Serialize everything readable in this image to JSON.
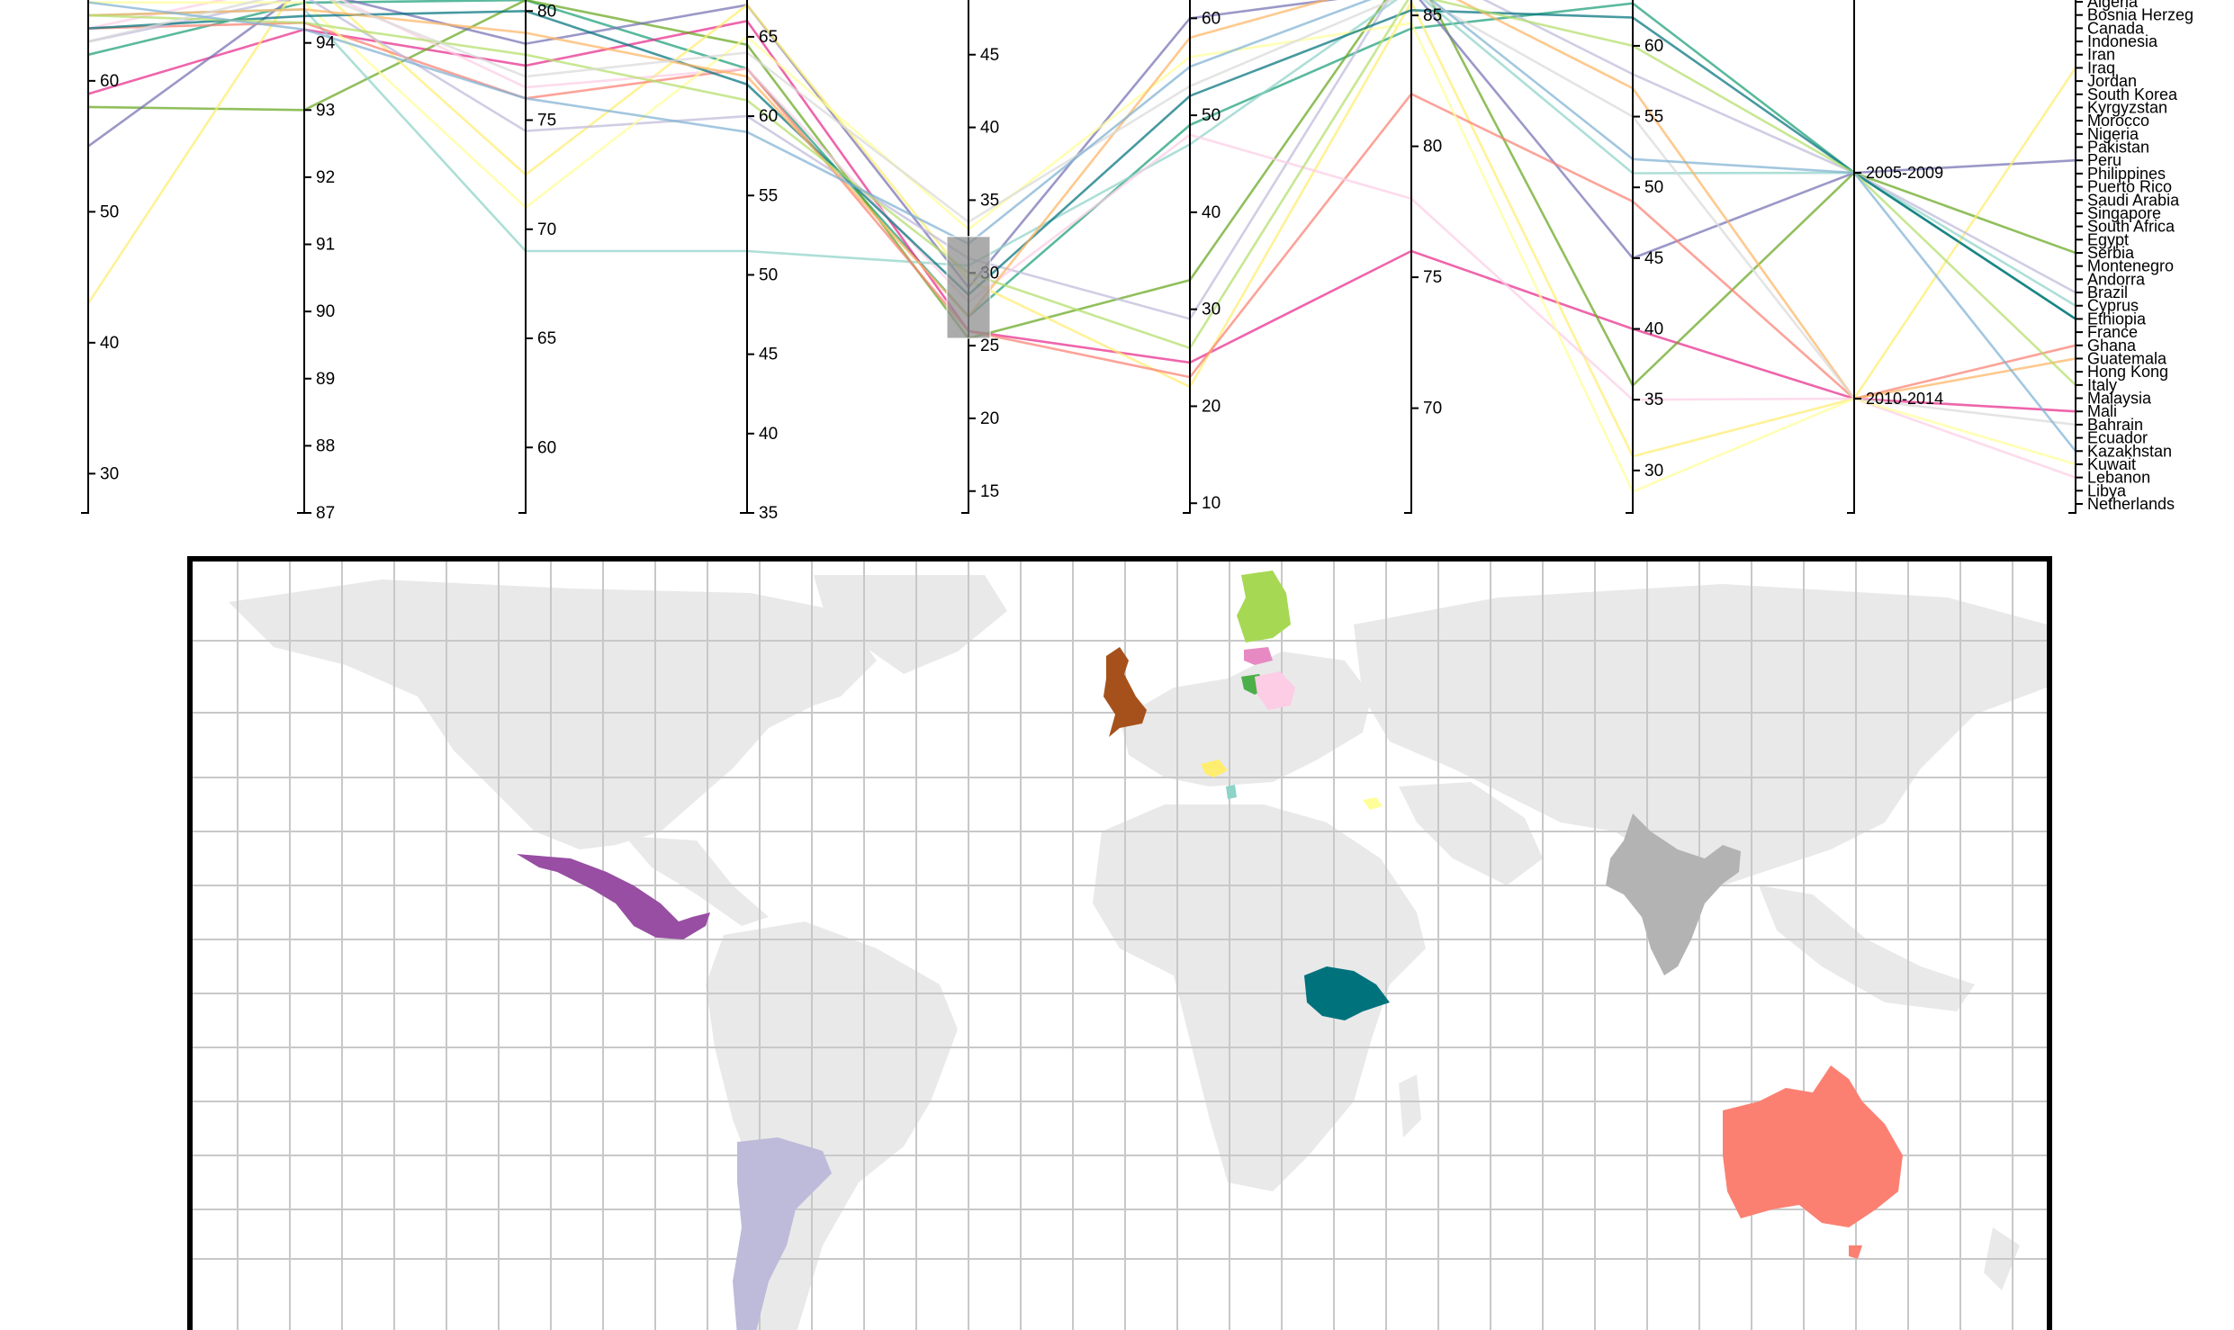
{
  "chart_data": [
    {
      "type": "parallel-coordinates",
      "axes": [
        {
          "id": "a1",
          "ticks": [
            "30",
            "40",
            "50",
            "60"
          ],
          "domain": [
            27,
            67
          ]
        },
        {
          "id": "a2",
          "ticks": [
            "87",
            "88",
            "89",
            "90",
            "91",
            "92",
            "93",
            "94"
          ],
          "domain": [
            87,
            94.8
          ]
        },
        {
          "id": "a3",
          "ticks": [
            "60",
            "65",
            "70",
            "75",
            "80"
          ],
          "domain": [
            57,
            81
          ]
        },
        {
          "id": "a4",
          "ticks": [
            "35",
            "40",
            "45",
            "50",
            "55",
            "60",
            "65"
          ],
          "domain": [
            35,
            68
          ]
        },
        {
          "id": "a5",
          "ticks": [
            "15",
            "20",
            "25",
            "30",
            "35",
            "40",
            "45"
          ],
          "domain": [
            13.5,
            49.5
          ]
        },
        {
          "id": "a6",
          "ticks": [
            "10",
            "20",
            "30",
            "40",
            "50",
            "60"
          ],
          "domain": [
            9,
            63
          ]
        },
        {
          "id": "a7",
          "ticks": [
            "70",
            "75",
            "80",
            "85"
          ],
          "domain": [
            66,
            86
          ]
        },
        {
          "id": "a8",
          "ticks": [
            "30",
            "35",
            "40",
            "45",
            "50",
            "55",
            "60"
          ],
          "domain": [
            27,
            64
          ]
        },
        {
          "id": "a9",
          "type": "categorical",
          "ticks": [
            "2005-2009",
            "2010-2014"
          ]
        },
        {
          "id": "a10",
          "type": "categorical",
          "ticks": [
            "Algeria",
            "Bosnia Herzeg",
            "Canada",
            "Indonesia",
            "Iran",
            "Iraq",
            "Jordan",
            "South Korea",
            "Kyrgyzstan",
            "Morocco",
            "Nigeria",
            "Pakistan",
            "Peru",
            "Philippines",
            "Puerto Rico",
            "Saudi Arabia",
            "Singapore",
            "South Africa",
            "Egypt",
            "Serbia",
            "Montenegro",
            "Andorra",
            "Brazil",
            "Cyprus",
            "Ethiopia",
            "France",
            "Ghana",
            "Guatemala",
            "Hong Kong",
            "Italy",
            "Malaysia",
            "Mali",
            "Bahrain",
            "Ecuador",
            "Kazakhstan",
            "Kuwait",
            "Lebanon",
            "Libya",
            "Netherlands"
          ]
        }
      ],
      "brush": {
        "axis": "a5",
        "range": [
          25.5,
          32.5
        ]
      },
      "series": [
        {
          "color": "#1b9e77",
          "values": [
            62,
            94.6,
            80.5,
            63,
            27,
            49,
            84.5,
            63,
            "2005-2009",
            "Ethiopia"
          ]
        },
        {
          "color": "#e7298a",
          "values": [
            59,
            94.2,
            77.5,
            66,
            26,
            24.5,
            76,
            40,
            "2010-2014",
            "Mali"
          ]
        },
        {
          "color": "#66a61e",
          "values": [
            58,
            93.0,
            80.5,
            64.5,
            25.5,
            33,
            87,
            36,
            "2005-2009",
            "Serbia"
          ]
        },
        {
          "color": "#7570b3",
          "values": [
            55,
            94.8,
            78.5,
            67,
            29,
            60,
            86,
            45,
            "2005-2009",
            "Peru"
          ]
        },
        {
          "color": "#ffed6f",
          "values": [
            43,
            95,
            72.5,
            67,
            29.5,
            22,
            85.5,
            31,
            "2010-2014",
            "Iraq"
          ]
        },
        {
          "color": "#8dd3c7",
          "values": [
            65,
            94.5,
            69,
            51.5,
            30.5,
            47,
            86,
            51,
            "2005-2009",
            "Cyprus"
          ]
        },
        {
          "color": "#fb8072",
          "values": [
            64,
            94.3,
            76,
            63,
            26,
            23,
            82,
            49,
            "2010-2014",
            "Ghana"
          ]
        },
        {
          "color": "#bebada",
          "values": [
            63,
            94.7,
            74.5,
            60,
            31,
            29,
            87,
            58,
            "2005-2009",
            "Brazil"
          ]
        },
        {
          "color": "#fccde5",
          "values": [
            64,
            94.9,
            76.5,
            63,
            28,
            48,
            78,
            35,
            "2010-2014",
            "Lebanon"
          ]
        },
        {
          "color": "#ffff99",
          "values": [
            66,
            94.6,
            71,
            65,
            33,
            56,
            84.7,
            28.5,
            "2010-2014",
            "Kuwait"
          ]
        },
        {
          "color": "#00727c",
          "values": [
            64,
            94.4,
            80,
            62,
            28.5,
            52,
            85.2,
            62,
            "2005-2009",
            "Ethiopia"
          ]
        },
        {
          "color": "#fdb462",
          "values": [
            65,
            94.5,
            79,
            62.5,
            27,
            58,
            86.5,
            57,
            "2010-2014",
            "Guatemala"
          ]
        },
        {
          "color": "#b3de69",
          "values": [
            65,
            94.3,
            78,
            61,
            30,
            26,
            85.8,
            60,
            "2005-2009",
            "Italy"
          ]
        },
        {
          "color": "#d9d9d9",
          "values": [
            63,
            94.8,
            77,
            64,
            33.5,
            53,
            85.9,
            55,
            "2010-2014",
            "Bahrain"
          ]
        },
        {
          "color": "#80b1d3",
          "values": [
            66,
            94.2,
            76,
            59,
            32,
            55,
            86.2,
            52,
            "2005-2009",
            "Kazakhstan"
          ]
        }
      ]
    },
    {
      "type": "map",
      "highlighted_regions": [
        {
          "name": "Mexico",
          "color": "#984ea3"
        },
        {
          "name": "Argentina",
          "color": "#bebada"
        },
        {
          "name": "United Kingdom",
          "color": "#a6511b"
        },
        {
          "name": "Finland",
          "color": "#a6d854"
        },
        {
          "name": "Latvia",
          "color": "#e78ac3"
        },
        {
          "name": "Lithuania",
          "color": "#4daf4a"
        },
        {
          "name": "Belarus",
          "color": "#fccde5"
        },
        {
          "name": "Slovenia",
          "color": "#ffed6f"
        },
        {
          "name": "Montenegro",
          "color": "#8dd3c7"
        },
        {
          "name": "Armenia",
          "color": "#ffff99"
        },
        {
          "name": "India",
          "color": "#b3b3b3"
        },
        {
          "name": "Ethiopia",
          "color": "#00727c"
        },
        {
          "name": "Australia",
          "color": "#fb8072"
        }
      ],
      "land_color": "#e9e9e9",
      "grid": true
    }
  ]
}
